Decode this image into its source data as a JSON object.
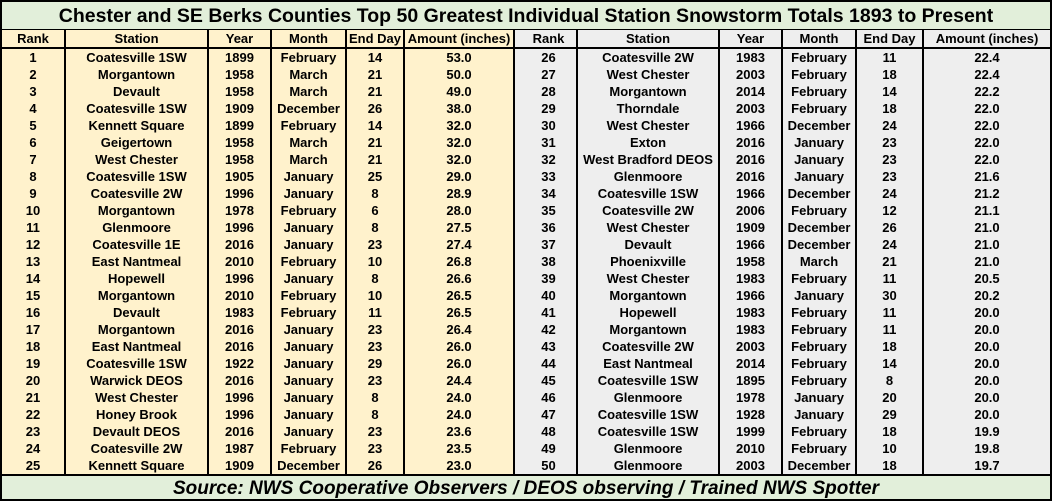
{
  "title": "Chester and SE Berks Counties Top 50 Greatest Individual Station Snowstorm Totals 1893 to Present",
  "columns": [
    "Rank",
    "Station",
    "Year",
    "Month",
    "End Day",
    "Amount (inches)"
  ],
  "colors": {
    "left_bg": "#fff2cc",
    "right_bg": "#eeeeee",
    "title_bg": "#e2efda"
  },
  "rows": [
    [
      "1",
      "Coatesville 1SW",
      "1899",
      "February",
      "14",
      "53.0"
    ],
    [
      "2",
      "Morgantown",
      "1958",
      "March",
      "21",
      "50.0"
    ],
    [
      "3",
      "Devault",
      "1958",
      "March",
      "21",
      "49.0"
    ],
    [
      "4",
      "Coatesville 1SW",
      "1909",
      "December",
      "26",
      "38.0"
    ],
    [
      "5",
      "Kennett Square",
      "1899",
      "February",
      "14",
      "32.0"
    ],
    [
      "6",
      "Geigertown",
      "1958",
      "March",
      "21",
      "32.0"
    ],
    [
      "7",
      "West Chester",
      "1958",
      "March",
      "21",
      "32.0"
    ],
    [
      "8",
      "Coatesville 1SW",
      "1905",
      "January",
      "25",
      "29.0"
    ],
    [
      "9",
      "Coatesville 2W",
      "1996",
      "January",
      "8",
      "28.9"
    ],
    [
      "10",
      "Morgantown",
      "1978",
      "February",
      "6",
      "28.0"
    ],
    [
      "11",
      "Glenmoore",
      "1996",
      "January",
      "8",
      "27.5"
    ],
    [
      "12",
      "Coatesville 1E",
      "2016",
      "January",
      "23",
      "27.4"
    ],
    [
      "13",
      "East Nantmeal",
      "2010",
      "February",
      "10",
      "26.8"
    ],
    [
      "14",
      "Hopewell",
      "1996",
      "January",
      "8",
      "26.6"
    ],
    [
      "15",
      "Morgantown",
      "2010",
      "February",
      "10",
      "26.5"
    ],
    [
      "16",
      "Devault",
      "1983",
      "February",
      "11",
      "26.5"
    ],
    [
      "17",
      "Morgantown",
      "2016",
      "January",
      "23",
      "26.4"
    ],
    [
      "18",
      "East Nantmeal",
      "2016",
      "January",
      "23",
      "26.0"
    ],
    [
      "19",
      "Coatesville 1SW",
      "1922",
      "January",
      "29",
      "26.0"
    ],
    [
      "20",
      "Warwick DEOS",
      "2016",
      "January",
      "23",
      "24.4"
    ],
    [
      "21",
      "West Chester",
      "1996",
      "January",
      "8",
      "24.0"
    ],
    [
      "22",
      "Honey Brook",
      "1996",
      "January",
      "8",
      "24.0"
    ],
    [
      "23",
      "Devault DEOS",
      "2016",
      "January",
      "23",
      "23.6"
    ],
    [
      "24",
      "Coatesville 2W",
      "1987",
      "February",
      "23",
      "23.5"
    ],
    [
      "25",
      "Kennett Square",
      "1909",
      "December",
      "26",
      "23.0"
    ],
    [
      "26",
      "Coatesville 2W",
      "1983",
      "February",
      "11",
      "22.4"
    ],
    [
      "27",
      "West Chester",
      "2003",
      "February",
      "18",
      "22.4"
    ],
    [
      "28",
      "Morgantown",
      "2014",
      "February",
      "14",
      "22.2"
    ],
    [
      "29",
      "Thorndale",
      "2003",
      "February",
      "18",
      "22.0"
    ],
    [
      "30",
      "West Chester",
      "1966",
      "December",
      "24",
      "22.0"
    ],
    [
      "31",
      "Exton",
      "2016",
      "January",
      "23",
      "22.0"
    ],
    [
      "32",
      "West Bradford DEOS",
      "2016",
      "January",
      "23",
      "22.0"
    ],
    [
      "33",
      "Glenmoore",
      "2016",
      "January",
      "23",
      "21.6"
    ],
    [
      "34",
      "Coatesville 1SW",
      "1966",
      "December",
      "24",
      "21.2"
    ],
    [
      "35",
      "Coatesville 2W",
      "2006",
      "February",
      "12",
      "21.1"
    ],
    [
      "36",
      "West Chester",
      "1909",
      "December",
      "26",
      "21.0"
    ],
    [
      "37",
      "Devault",
      "1966",
      "December",
      "24",
      "21.0"
    ],
    [
      "38",
      "Phoenixville",
      "1958",
      "March",
      "21",
      "21.0"
    ],
    [
      "39",
      "West Chester",
      "1983",
      "February",
      "11",
      "20.5"
    ],
    [
      "40",
      "Morgantown",
      "1966",
      "January",
      "30",
      "20.2"
    ],
    [
      "41",
      "Hopewell",
      "1983",
      "February",
      "11",
      "20.0"
    ],
    [
      "42",
      "Morgantown",
      "1983",
      "February",
      "11",
      "20.0"
    ],
    [
      "43",
      "Coatesville 2W",
      "2003",
      "February",
      "18",
      "20.0"
    ],
    [
      "44",
      "East Nantmeal",
      "2014",
      "February",
      "14",
      "20.0"
    ],
    [
      "45",
      "Coatesville 1SW",
      "1895",
      "February",
      "8",
      "20.0"
    ],
    [
      "46",
      "Glenmoore",
      "1978",
      "January",
      "20",
      "20.0"
    ],
    [
      "47",
      "Coatesville 1SW",
      "1928",
      "January",
      "29",
      "20.0"
    ],
    [
      "48",
      "Coatesville 1SW",
      "1999",
      "February",
      "18",
      "19.9"
    ],
    [
      "49",
      "Glenmoore",
      "2010",
      "February",
      "10",
      "19.8"
    ],
    [
      "50",
      "Glenmoore",
      "2003",
      "December",
      "18",
      "19.7"
    ]
  ],
  "source": "Source: NWS Cooperative Observers / DEOS observing / Trained NWS Spotter"
}
